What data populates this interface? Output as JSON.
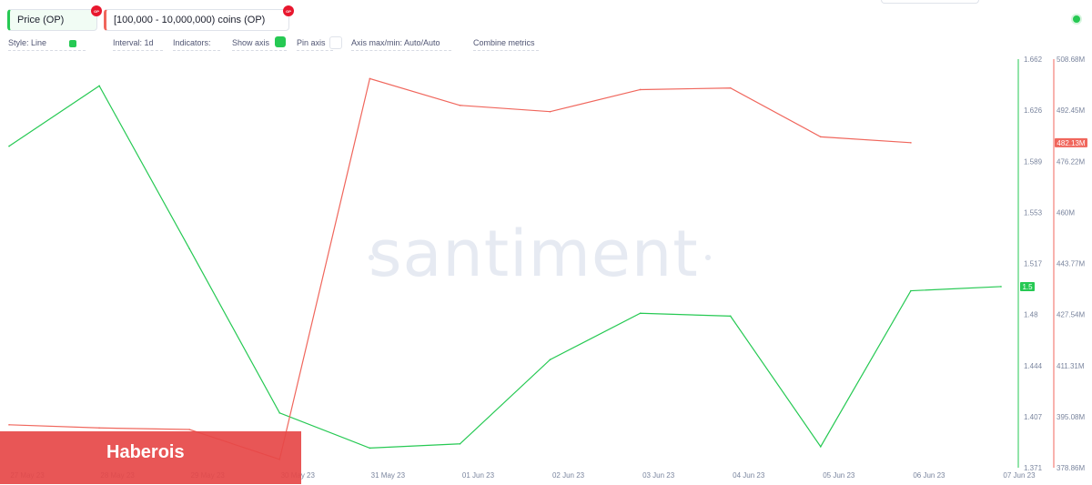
{
  "metrics": {
    "price": {
      "label": "Price (OP)",
      "badge": "OP",
      "color": "#26c953"
    },
    "holders": {
      "label": "[100,000 - 10,000,000) coins (OP)",
      "badge": "OP",
      "color": "#f0665c"
    }
  },
  "toolbar": {
    "style": "Style: Line",
    "interval": "Interval: 1d",
    "indicators": "Indicators:",
    "show_axis": "Show axis",
    "pin_axis": "Pin axis",
    "axis_minmax": "Axis max/min: Auto/Auto",
    "combine": "Combine metrics"
  },
  "watermark": "santiment",
  "banner": "Haberois",
  "chart_data": {
    "type": "line",
    "x": [
      "27 May 23",
      "28 May 23",
      "29 May 23",
      "30 May 23",
      "31 May 23",
      "01 Jun 23",
      "02 Jun 23",
      "03 Jun 23",
      "04 Jun 23",
      "05 Jun 23",
      "06 Jun 23",
      "07 Jun 23"
    ],
    "y_left_ticks": [
      "1.662",
      "1.626",
      "1.589",
      "1.553",
      "1.517",
      "1.48",
      "1.444",
      "1.407",
      "1.371"
    ],
    "y_right_ticks": [
      "508.68M",
      "492.45M",
      "476.22M",
      "460M",
      "443.77M",
      "427.54M",
      "411.31M",
      "395.08M",
      "378.86M"
    ],
    "ylim_price": [
      1.371,
      1.662
    ],
    "ylim_holders": [
      378.86,
      508.68
    ],
    "grid": false,
    "series": [
      {
        "axis": "price",
        "color": "#26c953",
        "last_label": "1.5",
        "values": [
          1.6,
          1.643,
          1.527,
          1.41,
          1.385,
          1.388,
          1.448,
          1.481,
          1.479,
          1.386,
          1.497,
          1.5
        ]
      },
      {
        "axis": "holders",
        "color": "#f0665c",
        "last_label": "482.13M",
        "values": [
          392.5,
          391.5,
          391.0,
          381.5,
          502.5,
          494.0,
          492.0,
          499.0,
          499.5,
          484.0,
          482.13,
          null
        ]
      }
    ]
  }
}
